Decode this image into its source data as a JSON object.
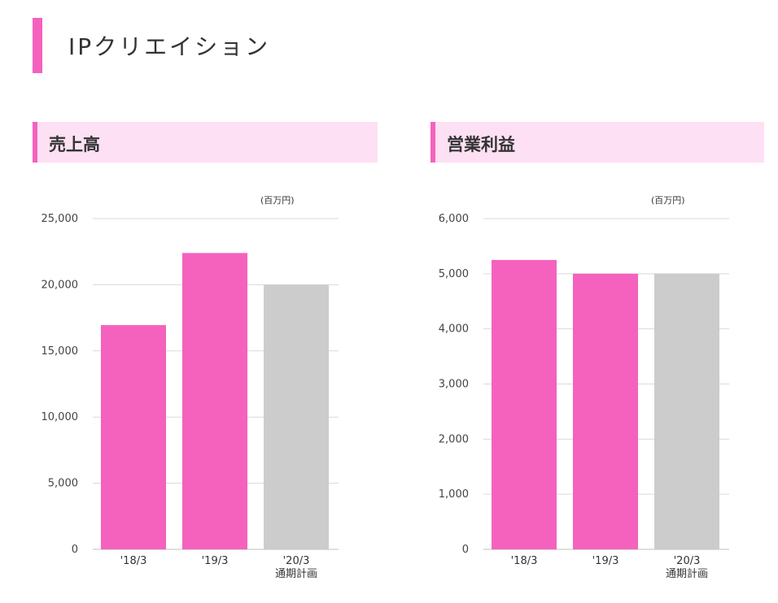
{
  "page_title": "IPクリエイション",
  "colors": {
    "accent": "#f462be",
    "section_bg": "#fde0f3",
    "actual_bar": "#f462be",
    "plan_bar": "#cccccc",
    "grid": "#d9d9d9"
  },
  "chart_data": [
    {
      "type": "bar",
      "title": "売上高",
      "unit": "(百万円)",
      "categories": [
        "'18/3",
        "'19/3",
        "'20/3"
      ],
      "category_sublabels": [
        "",
        "",
        "通期計画"
      ],
      "values": [
        16950,
        22400,
        20000
      ],
      "bar_kinds": [
        "actual",
        "actual",
        "plan"
      ],
      "ylim": [
        0,
        25000
      ],
      "yticks": [
        0,
        5000,
        10000,
        15000,
        20000,
        25000
      ],
      "ytick_labels": [
        "0",
        "5,000",
        "10,000",
        "15,000",
        "20,000",
        "25,000"
      ],
      "grid": true
    },
    {
      "type": "bar",
      "title": "営業利益",
      "unit": "(百万円)",
      "categories": [
        "'18/3",
        "'19/3",
        "'20/3"
      ],
      "category_sublabels": [
        "",
        "",
        "通期計画"
      ],
      "values": [
        5250,
        5000,
        5000
      ],
      "bar_kinds": [
        "actual",
        "actual",
        "plan"
      ],
      "ylim": [
        0,
        6000
      ],
      "yticks": [
        0,
        1000,
        2000,
        3000,
        4000,
        5000,
        6000
      ],
      "ytick_labels": [
        "0",
        "1,000",
        "2,000",
        "3,000",
        "4,000",
        "5,000",
        "6,000"
      ],
      "grid": true
    }
  ]
}
